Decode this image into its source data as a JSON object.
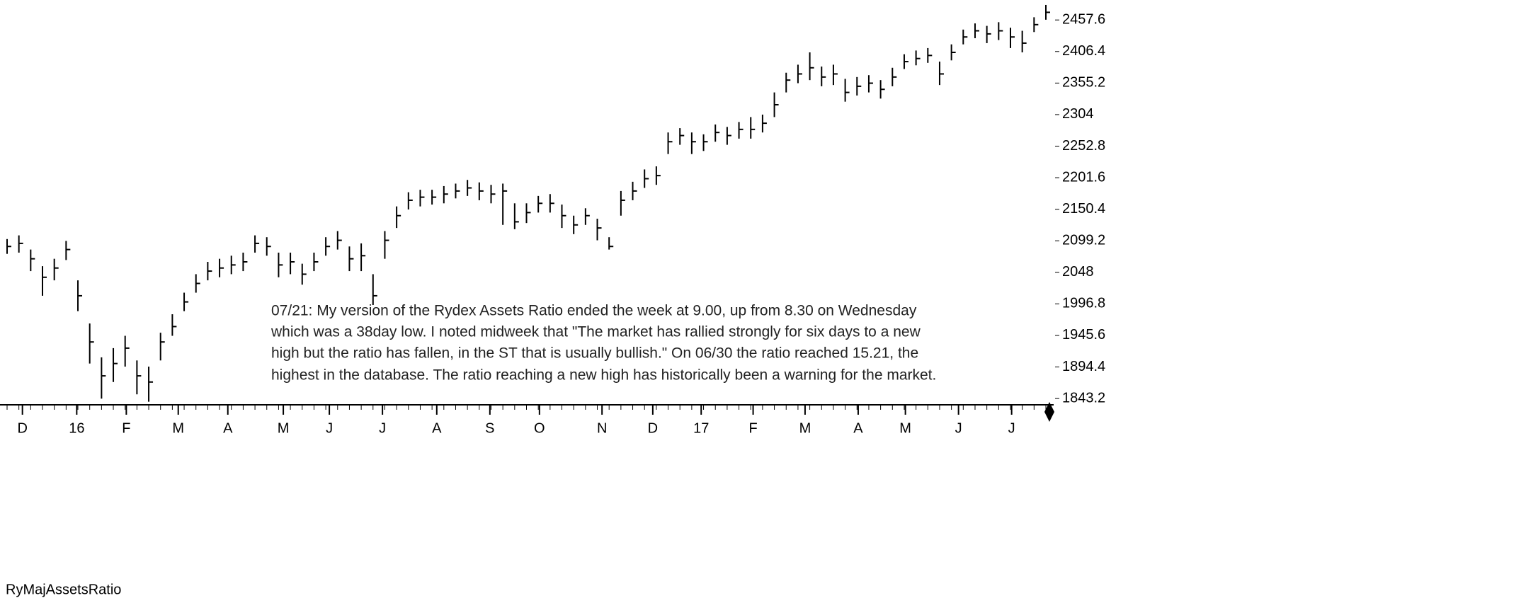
{
  "chart_data": {
    "type": "ohlc",
    "annotation": [
      "07/21: My version of the Rydex Assets Ratio ended the week at 9.00, up from 8.30 on Wednesday",
      "which was a 38day low. I noted midweek that \"The market has rallied strongly for six days to a new",
      "high but the ratio has fallen, in the ST that is usually bullish.\" On 06/30 the ratio reached 15.21, the",
      "highest in the database. The ratio reaching a new high has historically been a warning for the market."
    ],
    "indicator_label": "RyMajAssetsRatio",
    "color": "#000000",
    "close": [
      2090,
      2095,
      2070,
      2040,
      2055,
      2085,
      2010,
      1935,
      1880,
      1900,
      1925,
      1880,
      1870,
      1935,
      1960,
      2000,
      2030,
      2050,
      2055,
      2060,
      2065,
      2095,
      2090,
      2060,
      2065,
      2045,
      2065,
      2090,
      2100,
      2070,
      2075,
      2010,
      2100,
      2140,
      2165,
      2170,
      2170,
      2175,
      2180,
      2185,
      2180,
      2175,
      2180,
      2130,
      2145,
      2160,
      2160,
      2140,
      2125,
      2140,
      2120,
      2090,
      2165,
      2180,
      2200,
      2205,
      2260,
      2270,
      2260,
      2260,
      2275,
      2270,
      2280,
      2280,
      2290,
      2320,
      2360,
      2370,
      2380,
      2365,
      2370,
      2340,
      2350,
      2355,
      2345,
      2365,
      2390,
      2395,
      2400,
      2370,
      2405,
      2430,
      2440,
      2435,
      2440,
      2430,
      2420,
      2450,
      2470
    ],
    "high": [
      2102,
      2108,
      2085,
      2058,
      2070,
      2099,
      2035,
      1965,
      1910,
      1925,
      1945,
      1905,
      1895,
      1950,
      1980,
      2015,
      2045,
      2065,
      2070,
      2075,
      2080,
      2108,
      2105,
      2080,
      2080,
      2062,
      2080,
      2105,
      2115,
      2090,
      2095,
      2045,
      2115,
      2155,
      2178,
      2182,
      2182,
      2188,
      2192,
      2198,
      2194,
      2190,
      2192,
      2160,
      2160,
      2172,
      2175,
      2158,
      2140,
      2152,
      2135,
      2105,
      2180,
      2195,
      2215,
      2220,
      2275,
      2282,
      2275,
      2272,
      2288,
      2284,
      2292,
      2300,
      2304,
      2340,
      2372,
      2385,
      2405,
      2382,
      2385,
      2362,
      2365,
      2368,
      2360,
      2380,
      2402,
      2408,
      2412,
      2390,
      2418,
      2442,
      2452,
      2448,
      2454,
      2445,
      2440,
      2462,
      2482
    ],
    "low": [
      2078,
      2080,
      2050,
      2010,
      2035,
      2068,
      1985,
      1900,
      1843,
      1870,
      1895,
      1850,
      1838,
      1905,
      1945,
      1985,
      2015,
      2035,
      2040,
      2045,
      2050,
      2080,
      2075,
      2040,
      2045,
      2028,
      2050,
      2075,
      2085,
      2050,
      2050,
      1995,
      2070,
      2120,
      2150,
      2155,
      2158,
      2160,
      2168,
      2172,
      2165,
      2160,
      2125,
      2118,
      2128,
      2145,
      2145,
      2120,
      2110,
      2125,
      2100,
      2085,
      2140,
      2165,
      2185,
      2190,
      2240,
      2255,
      2240,
      2245,
      2260,
      2255,
      2265,
      2265,
      2275,
      2300,
      2340,
      2355,
      2360,
      2350,
      2352,
      2325,
      2335,
      2340,
      2330,
      2350,
      2378,
      2384,
      2388,
      2352,
      2392,
      2418,
      2428,
      2420,
      2425,
      2412,
      2405,
      2438,
      2458
    ],
    "xlim": [
      0,
      88
    ],
    "xticks": [
      {
        "value": 1.3,
        "label": "D"
      },
      {
        "value": 5.9,
        "label": "16"
      },
      {
        "value": 10.1,
        "label": "F"
      },
      {
        "value": 14.5,
        "label": "M"
      },
      {
        "value": 18.7,
        "label": "A"
      },
      {
        "value": 23.4,
        "label": "M"
      },
      {
        "value": 27.3,
        "label": "J"
      },
      {
        "value": 31.8,
        "label": "J"
      },
      {
        "value": 36.4,
        "label": "A"
      },
      {
        "value": 40.9,
        "label": "S"
      },
      {
        "value": 45.1,
        "label": "O"
      },
      {
        "value": 50.4,
        "label": "N"
      },
      {
        "value": 54.7,
        "label": "D"
      },
      {
        "value": 58.8,
        "label": "17"
      },
      {
        "value": 63.2,
        "label": "F"
      },
      {
        "value": 67.6,
        "label": "M"
      },
      {
        "value": 72.1,
        "label": "A"
      },
      {
        "value": 76.1,
        "label": "M"
      },
      {
        "value": 80.6,
        "label": "J"
      },
      {
        "value": 85.1,
        "label": "J"
      }
    ],
    "ylim": [
      1833,
      2490
    ],
    "yticks": [
      2457.6,
      2406.4,
      2355.2,
      2304,
      2252.8,
      2201.6,
      2150.4,
      2099.2,
      2048,
      1996.8,
      1945.6,
      1894.4,
      1843.2
    ]
  }
}
